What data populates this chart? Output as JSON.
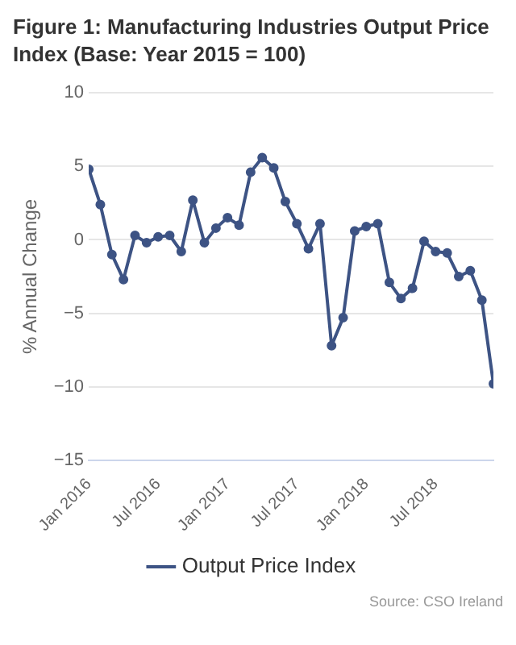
{
  "chart_data": {
    "type": "line",
    "title": "Figure 1: Manufacturing Industries Output Price Index (Base: Year 2015 = 100)",
    "ylabel": "% Annual Change",
    "annotations": [
      "Source: CSO Ireland"
    ],
    "x": [
      "2016-01",
      "2016-02",
      "2016-03",
      "2016-04",
      "2016-05",
      "2016-06",
      "2016-07",
      "2016-08",
      "2016-09",
      "2016-10",
      "2016-11",
      "2016-12",
      "2017-01",
      "2017-02",
      "2017-03",
      "2017-04",
      "2017-05",
      "2017-06",
      "2017-07",
      "2017-08",
      "2017-09",
      "2017-10",
      "2017-11",
      "2017-12",
      "2018-01",
      "2018-02",
      "2018-03",
      "2018-04",
      "2018-05",
      "2018-06",
      "2018-07",
      "2018-08",
      "2018-09",
      "2018-10",
      "2018-11",
      "2018-12"
    ],
    "series": [
      {
        "name": "Output Price Index",
        "color": "#3d5384",
        "values": [
          4.8,
          2.4,
          -1.0,
          -2.7,
          0.3,
          -0.2,
          0.2,
          0.3,
          -0.8,
          2.7,
          -0.2,
          0.8,
          1.5,
          1.0,
          4.6,
          5.6,
          4.9,
          2.6,
          1.1,
          -0.6,
          1.1,
          -7.2,
          -5.3,
          0.6,
          0.9,
          1.1,
          -2.9,
          -4.0,
          -3.3,
          -0.1,
          -0.8,
          -0.9,
          -2.5,
          -2.1,
          -4.1,
          -9.8
        ]
      }
    ],
    "xlim": [
      "2016-01",
      "2018-12"
    ],
    "xticks": [
      {
        "value": "2016-01",
        "label": "Jan 2016"
      },
      {
        "value": "2016-07",
        "label": "Jul 2016"
      },
      {
        "value": "2017-01",
        "label": "Jan 2017"
      },
      {
        "value": "2017-07",
        "label": "Jul 2017"
      },
      {
        "value": "2018-01",
        "label": "Jan 2018"
      },
      {
        "value": "2018-07",
        "label": "Jul 2018"
      }
    ],
    "ylim": [
      -15,
      10
    ],
    "yticks": [
      -15,
      -10,
      -5,
      0,
      5,
      10
    ],
    "grid": "y",
    "legend": "bottom",
    "marker": "circle",
    "line_style": "solid"
  }
}
